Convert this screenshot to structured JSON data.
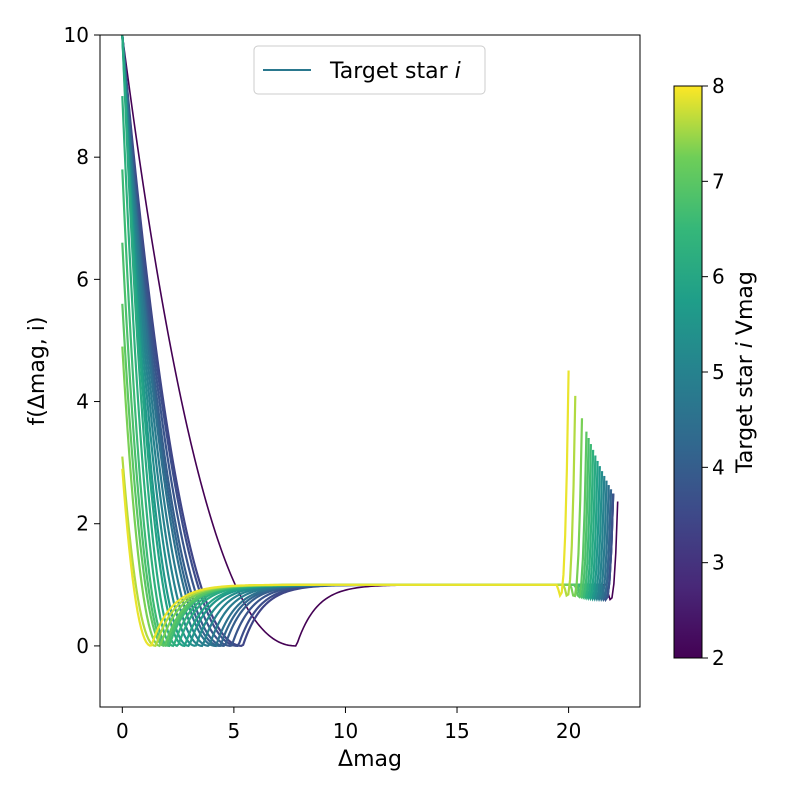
{
  "chart_data": {
    "type": "line",
    "xlabel": "Δmag",
    "ylabel": "f(Δmag, i)",
    "xlim": [
      -1,
      23.2
    ],
    "ylim": [
      -1,
      10
    ],
    "x_ticks": [
      0,
      5,
      10,
      15,
      20
    ],
    "x_tick_labels": [
      "0",
      "5",
      "10",
      "15",
      "20"
    ],
    "y_ticks": [
      0,
      2,
      4,
      6,
      8,
      10
    ],
    "y_tick_labels": [
      "0",
      "2",
      "4",
      "6",
      "8",
      "10"
    ],
    "grid": false,
    "legend": {
      "position": "top-center",
      "entries": [
        {
          "label": "Target star",
          "label_italic": "i",
          "color": "#2a788e"
        }
      ]
    },
    "colorbar": {
      "label": "Target star",
      "label_italic": "i",
      "label_suffix": "Vmag",
      "range": [
        2,
        8
      ],
      "ticks": [
        2,
        3,
        4,
        5,
        6,
        7,
        8
      ],
      "tick_labels": [
        "2",
        "3",
        "4",
        "5",
        "6",
        "7",
        "8"
      ],
      "colormap": "viridis"
    },
    "series": [
      {
        "vmag": 2.0,
        "x_left": 7.8,
        "x_right": 22.2,
        "y_at_zero": 10,
        "plateau": 1.0
      },
      {
        "vmag": 3.4,
        "x_left": 5.4,
        "x_right": 22.0,
        "y_at_zero": 10,
        "plateau": 1.0
      },
      {
        "vmag": 3.6,
        "x_left": 5.2,
        "x_right": 22.0,
        "y_at_zero": 10,
        "plateau": 1.0
      },
      {
        "vmag": 3.8,
        "x_left": 4.9,
        "x_right": 22.0,
        "y_at_zero": 10,
        "plateau": 1.0
      },
      {
        "vmag": 4.0,
        "x_left": 4.6,
        "x_right": 21.9,
        "y_at_zero": 10,
        "plateau": 1.0
      },
      {
        "vmag": 4.2,
        "x_left": 4.4,
        "x_right": 21.9,
        "y_at_zero": 10,
        "plateau": 1.0
      },
      {
        "vmag": 4.5,
        "x_left": 4.2,
        "x_right": 21.8,
        "y_at_zero": 10,
        "plateau": 1.0
      },
      {
        "vmag": 4.8,
        "x_left": 3.9,
        "x_right": 21.7,
        "y_at_zero": 10,
        "plateau": 1.0
      },
      {
        "vmag": 5.0,
        "x_left": 3.6,
        "x_right": 21.6,
        "y_at_zero": 10,
        "plateau": 1.0
      },
      {
        "vmag": 5.3,
        "x_left": 3.3,
        "x_right": 21.5,
        "y_at_zero": 10,
        "plateau": 1.0
      },
      {
        "vmag": 5.6,
        "x_left": 3.0,
        "x_right": 21.4,
        "y_at_zero": 10,
        "plateau": 1.0
      },
      {
        "vmag": 5.9,
        "x_left": 2.8,
        "x_right": 21.3,
        "y_at_zero": 10,
        "plateau": 1.0
      },
      {
        "vmag": 6.1,
        "x_left": 2.5,
        "x_right": 21.2,
        "y_at_zero": 10,
        "plateau": 1.0
      },
      {
        "vmag": 6.3,
        "x_left": 2.3,
        "x_right": 21.1,
        "y_at_zero": 9.0,
        "plateau": 1.0
      },
      {
        "vmag": 6.6,
        "x_left": 2.1,
        "x_right": 21.0,
        "y_at_zero": 7.8,
        "plateau": 1.0
      },
      {
        "vmag": 6.8,
        "x_left": 2.0,
        "x_right": 20.9,
        "y_at_zero": 6.6,
        "plateau": 1.0
      },
      {
        "vmag": 7.0,
        "x_left": 1.9,
        "x_right": 20.8,
        "y_at_zero": 5.6,
        "plateau": 1.0
      },
      {
        "vmag": 7.3,
        "x_left": 1.7,
        "x_right": 20.6,
        "y_at_zero": 4.9,
        "plateau": 1.0
      },
      {
        "vmag": 7.6,
        "x_left": 1.5,
        "x_right": 20.3,
        "y_at_zero": 3.1,
        "plateau": 1.0
      },
      {
        "vmag": 7.9,
        "x_left": 1.3,
        "x_right": 20.0,
        "y_at_zero": 2.9,
        "plateau": 1.0
      }
    ]
  }
}
